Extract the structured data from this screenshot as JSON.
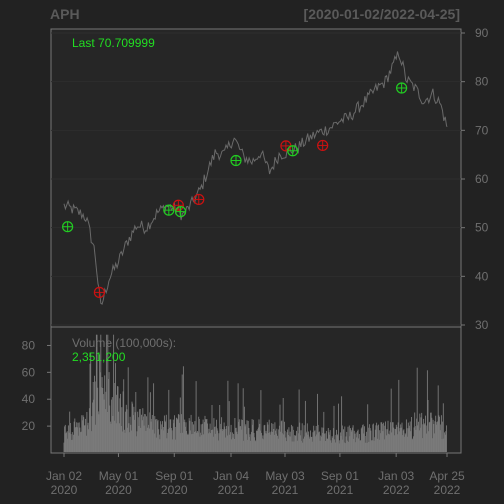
{
  "chart_data": [
    {
      "type": "line",
      "title": "APH",
      "date_range": "[2020-01-02/2022-04-25]",
      "last_label": "Last 70.709999",
      "ylim": [
        30,
        90
      ],
      "y_ticks": [
        "90",
        "80",
        "70",
        "60",
        "50",
        "40",
        "30"
      ],
      "grid": true,
      "series": [
        {
          "x": [
            "2020-01-02",
            "2020-01-20",
            "2020-02-10",
            "2020-02-20",
            "2020-03-10",
            "2020-03-23",
            "2020-04-10",
            "2020-05-01",
            "2020-05-20",
            "2020-06-10",
            "2020-07-01",
            "2020-07-25",
            "2020-08-15",
            "2020-09-01",
            "2020-09-20",
            "2020-10-10",
            "2020-10-30",
            "2020-11-15",
            "2020-12-01",
            "2020-12-20",
            "2021-01-10",
            "2021-02-01",
            "2021-02-20",
            "2021-03-10",
            "2021-03-30",
            "2021-04-20",
            "2021-05-10",
            "2021-06-01",
            "2021-06-20",
            "2021-07-15",
            "2021-08-10",
            "2021-09-01",
            "2021-09-20",
            "2021-10-15",
            "2021-11-01",
            "2021-11-20",
            "2021-12-10",
            "2021-12-31",
            "2022-01-10",
            "2022-01-25",
            "2022-02-15",
            "2022-03-05",
            "2022-03-25",
            "2022-04-10",
            "2022-04-25"
          ],
          "values": [
            54.5,
            53.8,
            52.8,
            52.0,
            45.0,
            33.5,
            39.5,
            43.0,
            47.0,
            50.5,
            50.0,
            53.0,
            54.5,
            54.0,
            52.5,
            55.0,
            58.0,
            62.0,
            65.5,
            65.0,
            68.5,
            64.5,
            63.5,
            65.5,
            61.5,
            65.0,
            65.5,
            66.5,
            68.0,
            69.5,
            70.5,
            72.0,
            72.5,
            75.0,
            76.5,
            78.5,
            80.0,
            84.0,
            86.0,
            80.5,
            78.5,
            76.0,
            77.5,
            75.5,
            70.7
          ]
        }
      ],
      "markers": {
        "green_dates": [
          "2020-01-10",
          "2020-08-20",
          "2020-09-15",
          "2021-01-15",
          "2021-05-20",
          "2022-01-15"
        ],
        "green_values": [
          50.2,
          53.6,
          53.3,
          63.8,
          65.8,
          78.7
        ],
        "red_dates": [
          "2020-03-20",
          "2020-09-10",
          "2020-10-25",
          "2021-05-05",
          "2021-07-25"
        ],
        "red_values": [
          36.7,
          54.6,
          55.8,
          66.8,
          66.9
        ]
      }
    },
    {
      "type": "bar",
      "label": "Volume (100,000s):",
      "last_value": "2,351,200",
      "ylim": [
        0,
        90
      ],
      "y_ticks": [
        "80",
        "60",
        "40",
        "20"
      ],
      "profile_dates": [
        "2020-01-02",
        "2020-02-20",
        "2020-03-20",
        "2020-04-20",
        "2020-06-01",
        "2020-08-01",
        "2020-10-01",
        "2020-12-01",
        "2021-02-01",
        "2021-05-01",
        "2021-08-01",
        "2021-11-01",
        "2022-01-15",
        "2022-03-01",
        "2022-04-25"
      ],
      "profile_values": [
        17,
        22,
        55,
        40,
        28,
        22,
        22,
        20,
        19,
        18,
        15,
        16,
        20,
        24,
        22
      ]
    }
  ],
  "x_ticks": [
    {
      "date": "2020-01-02",
      "line1": "Jan 02",
      "line2": "2020"
    },
    {
      "date": "2020-05-01",
      "line1": "May 01",
      "line2": "2020"
    },
    {
      "date": "2020-09-01",
      "line1": "Sep 01",
      "line2": "2020"
    },
    {
      "date": "2021-01-04",
      "line1": "Jan 04",
      "line2": "2021"
    },
    {
      "date": "2021-05-03",
      "line1": "May 03",
      "line2": "2021"
    },
    {
      "date": "2021-09-01",
      "line1": "Sep 01",
      "line2": "2021"
    },
    {
      "date": "2022-01-03",
      "line1": "Jan 03",
      "line2": "2022"
    },
    {
      "date": "2022-04-25",
      "line1": "Apr 25",
      "line2": "2022"
    }
  ],
  "colors": {
    "background": "#222222",
    "panel": "#262626",
    "frame": "#777777",
    "grid": "#2e2e2e",
    "price_line": "#6a6a6a",
    "volume_bar": "#7a7a7a",
    "green_marker": "#22cc22",
    "red_marker": "#cc1111",
    "text_green": "#22dd22",
    "text_grey": "#6f6f6f"
  }
}
